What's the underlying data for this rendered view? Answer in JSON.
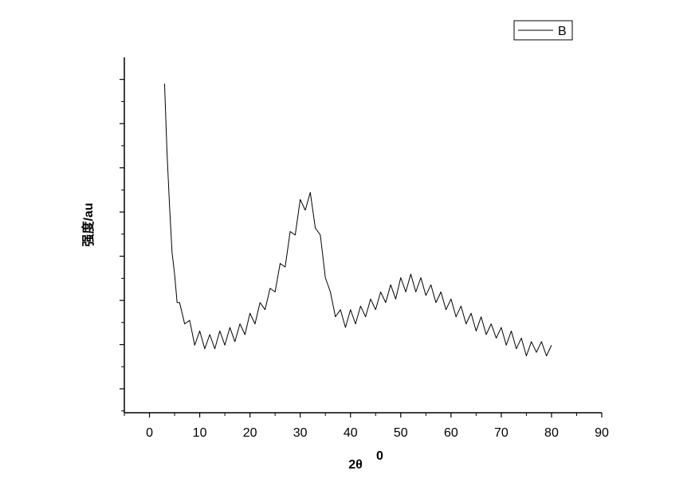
{
  "chart_data": {
    "type": "line",
    "x_label": "2θ",
    "x_label_superscript": "0",
    "y_label": "强度/au",
    "x": [
      3,
      3.5,
      4,
      4.5,
      5,
      5.5,
      6,
      7,
      8,
      9,
      10,
      11,
      12,
      13,
      14,
      15,
      16,
      17,
      18,
      19,
      20,
      21,
      22,
      23,
      24,
      25,
      26,
      27,
      28,
      29,
      30,
      31,
      32,
      33,
      34,
      35,
      36,
      37,
      38,
      39,
      40,
      41,
      42,
      43,
      44,
      45,
      46,
      47,
      48,
      49,
      50,
      51,
      52,
      53,
      54,
      55,
      56,
      57,
      58,
      59,
      60,
      61,
      62,
      63,
      64,
      65,
      66,
      67,
      68,
      69,
      70,
      71,
      72,
      73,
      74,
      75,
      76,
      77,
      78,
      79,
      80
    ],
    "series": [
      {
        "name": "B",
        "color": "#000000",
        "values": [
          92.6,
          73,
          58,
          45,
          39,
          31,
          31,
          25,
          26,
          19,
          23,
          18,
          22,
          18,
          23,
          19,
          24,
          20,
          25,
          22,
          28,
          25,
          31,
          29,
          35,
          34,
          42,
          41,
          51,
          50,
          60,
          57,
          62,
          52,
          50,
          38,
          34,
          27,
          29,
          24,
          29,
          25,
          30,
          27,
          32,
          29,
          34,
          31,
          36,
          32,
          38,
          34,
          39,
          34,
          38,
          33,
          36,
          31,
          34,
          29,
          32,
          27,
          30,
          25,
          28,
          23,
          27,
          22,
          25,
          21,
          24,
          19,
          23,
          18,
          21,
          16,
          20,
          17,
          20,
          16,
          19
        ]
      }
    ],
    "xlim": [
      -5,
      90
    ],
    "xticks": [
      0,
      10,
      20,
      30,
      40,
      50,
      60,
      70,
      80,
      90
    ],
    "ylim": [
      0,
      100
    ],
    "legend": "top-right"
  }
}
